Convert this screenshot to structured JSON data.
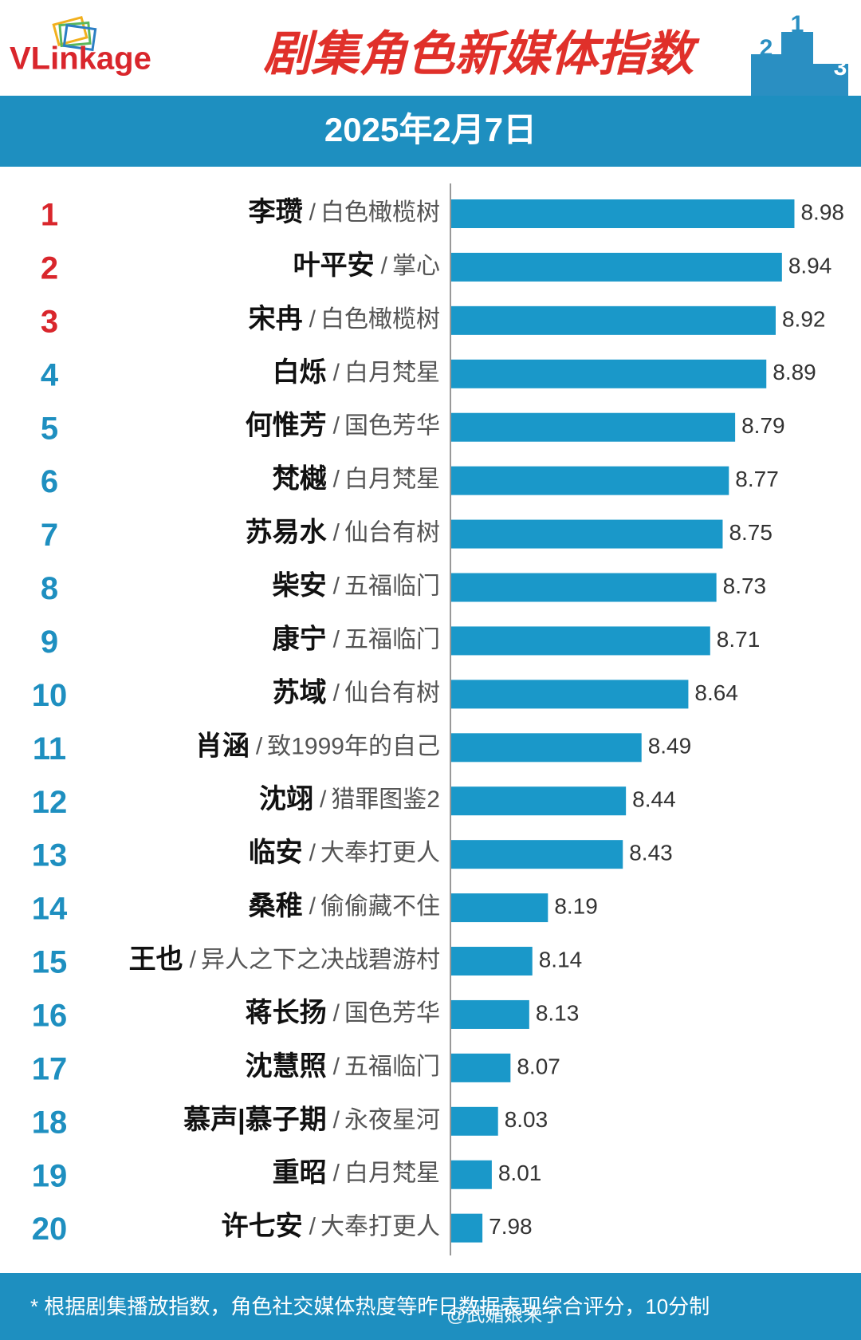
{
  "header": {
    "logo": "VLinkage",
    "title": "剧集角色新媒体指数",
    "podium": [
      "2",
      "1",
      "3"
    ],
    "date": "2025年2月7日"
  },
  "chart_data": {
    "type": "hbar",
    "ranks": [
      1,
      2,
      3,
      4,
      5,
      6,
      7,
      8,
      9,
      10,
      11,
      12,
      13,
      14,
      15,
      16,
      17,
      18,
      19,
      20
    ],
    "rank_colors": [
      "#d9262c",
      "#d9262c",
      "#d9262c",
      "#1e8fc0",
      "#1e8fc0",
      "#1e8fc0",
      "#1e8fc0",
      "#1e8fc0",
      "#1e8fc0",
      "#1e8fc0",
      "#1e8fc0",
      "#1e8fc0",
      "#1e8fc0",
      "#1e8fc0",
      "#1e8fc0",
      "#1e8fc0",
      "#1e8fc0",
      "#1e8fc0",
      "#1e8fc0",
      "#1e8fc0"
    ],
    "categories": [
      "李瓒",
      "叶平安",
      "宋冉",
      "白烁",
      "何惟芳",
      "梵樾",
      "苏易水",
      "柴安",
      "康宁",
      "苏域",
      "肖涵",
      "沈翊",
      "临安",
      "桑稚",
      "王也",
      "蒋长扬",
      "沈慧照",
      "慕声|慕子期",
      "重昭",
      "许七安"
    ],
    "separator": "/",
    "dramas": [
      "白色橄榄树",
      "掌心",
      "白色橄榄树",
      "白月梵星",
      "国色芳华",
      "白月梵星",
      "仙台有树",
      "五福临门",
      "五福临门",
      "仙台有树",
      "致1999年的自己",
      "猎罪图鉴2",
      "大奉打更人",
      "偷偷藏不住",
      "异人之下之决战碧游村",
      "国色芳华",
      "五福临门",
      "永夜星河",
      "白月梵星",
      "大奉打更人"
    ],
    "values": [
      8.98,
      8.94,
      8.92,
      8.89,
      8.79,
      8.77,
      8.75,
      8.73,
      8.71,
      8.64,
      8.49,
      8.44,
      8.43,
      8.19,
      8.14,
      8.13,
      8.07,
      8.03,
      8.01,
      7.98
    ],
    "color": "#1a98c9",
    "xlim": [
      7.88,
      9.15
    ]
  },
  "footer": {
    "note": "* 根据剧集播放指数，角色社交媒体热度等昨日数据表现综合评分，10分制",
    "watermark": "@武媚娘来了"
  }
}
